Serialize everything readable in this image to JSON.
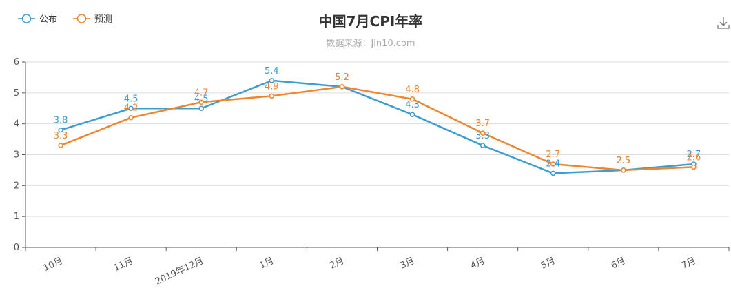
{
  "chart_data": {
    "type": "line",
    "title": "中国7月CPI年率",
    "subtitle": "数据来源：Jin10.com",
    "categories": [
      "10月",
      "11月",
      "2019年12月",
      "1月",
      "2月",
      "3月",
      "4月",
      "5月",
      "6月",
      "7月"
    ],
    "y_ticks": [
      "0",
      "1",
      "2",
      "3",
      "4",
      "5",
      "6"
    ],
    "ylim": [
      0,
      6
    ],
    "grid": true,
    "legend_position": "top-left",
    "series": [
      {
        "name": "公布",
        "color": "#3c9dd0",
        "values": [
          3.8,
          4.5,
          4.5,
          5.4,
          5.2,
          4.3,
          3.3,
          2.4,
          2.5,
          2.7
        ],
        "labels": [
          "3.8",
          "4.5",
          "4.5",
          "5.4",
          "5.2",
          "4.3",
          "3.3",
          "2.4",
          "2.5",
          "2.7"
        ]
      },
      {
        "name": "预测",
        "color": "#f0852d",
        "values": [
          3.3,
          4.2,
          4.7,
          4.9,
          5.2,
          4.8,
          3.7,
          2.7,
          2.5,
          2.6
        ],
        "labels": [
          "3.3",
          "4.2",
          "4.7",
          "4.9",
          "5.2",
          "4.8",
          "3.7",
          "2.7",
          "2.5",
          "2.6"
        ]
      }
    ]
  },
  "toolbar": {
    "download_icon": "download-icon"
  }
}
